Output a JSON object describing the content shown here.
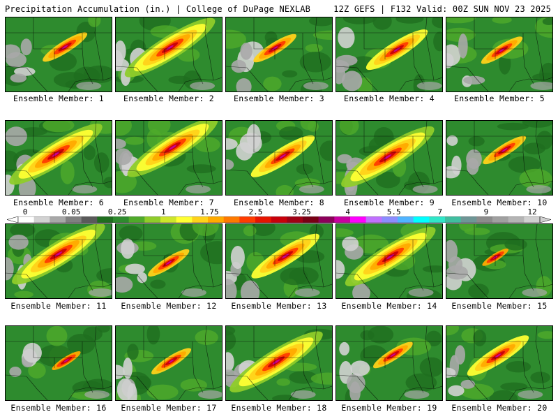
{
  "header": {
    "left": "Precipitation Accumulation (in.) | College of DuPage NEXLAB",
    "right": "12Z GEFS | F132 Valid: 00Z SUN NOV 23 2025"
  },
  "colorbar": {
    "labels": [
      "0",
      "0.05",
      "0.25",
      "1",
      "1.75",
      "2.5",
      "3.25",
      "4",
      "5.5",
      "7",
      "9",
      "12"
    ],
    "colors": [
      "#ffffff",
      "#d2d2d2",
      "#a8a8a8",
      "#808080",
      "#5a5a5a",
      "#1f6e1f",
      "#2e8b2e",
      "#4faa2a",
      "#8fcc2a",
      "#cde62a",
      "#ffff33",
      "#ffd21a",
      "#ffaa00",
      "#ff7a00",
      "#ff3c00",
      "#e61400",
      "#c8000a",
      "#a00014",
      "#780014",
      "#8c005a",
      "#c800a0",
      "#ff00ff",
      "#c070ff",
      "#8c8cff",
      "#50b4ff",
      "#00ffff",
      "#30e6c8",
      "#40bea0",
      "#6e9696",
      "#8c8c8c",
      "#a0a0a0",
      "#b4b4b4",
      "#d0d0d0"
    ]
  },
  "members": [
    {
      "label": "Ensemble Member: 1",
      "intensity": 0.55
    },
    {
      "label": "Ensemble Member: 2",
      "intensity": 0.85
    },
    {
      "label": "Ensemble Member: 3",
      "intensity": 0.5
    },
    {
      "label": "Ensemble Member: 4",
      "intensity": 0.6
    },
    {
      "label": "Ensemble Member: 5",
      "intensity": 0.45
    },
    {
      "label": "Ensemble Member: 6",
      "intensity": 0.9
    },
    {
      "label": "Ensemble Member: 7",
      "intensity": 0.85
    },
    {
      "label": "Ensemble Member: 8",
      "intensity": 0.65
    },
    {
      "label": "Ensemble Member: 9",
      "intensity": 0.9
    },
    {
      "label": "Ensemble Member: 10",
      "intensity": 0.5
    },
    {
      "label": "Ensemble Member: 11",
      "intensity": 0.9
    },
    {
      "label": "Ensemble Member: 12",
      "intensity": 0.45
    },
    {
      "label": "Ensemble Member: 13",
      "intensity": 0.75
    },
    {
      "label": "Ensemble Member: 14",
      "intensity": 0.85
    },
    {
      "label": "Ensemble Member: 15",
      "intensity": 0.25
    },
    {
      "label": "Ensemble Member: 16",
      "intensity": 0.35
    },
    {
      "label": "Ensemble Member: 17",
      "intensity": 0.4
    },
    {
      "label": "Ensemble Member: 18",
      "intensity": 0.9
    },
    {
      "label": "Ensemble Member: 19",
      "intensity": 0.4
    },
    {
      "label": "Ensemble Member: 20",
      "intensity": 0.6
    }
  ]
}
